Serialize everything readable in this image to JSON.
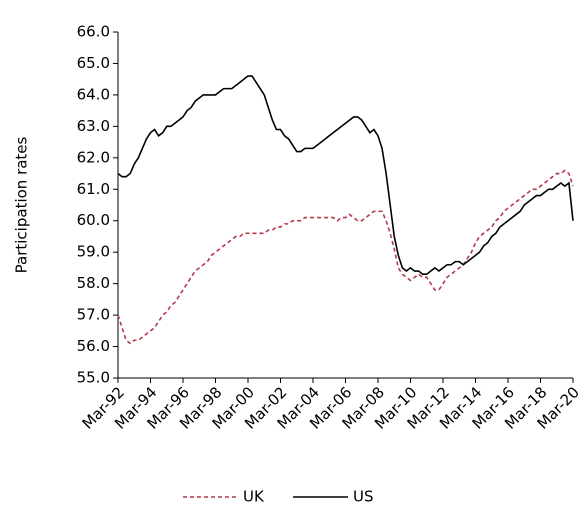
{
  "chart_data": {
    "type": "line",
    "y_label": "Participation rates",
    "categories": [
      "Mar-92",
      null,
      null,
      null,
      null,
      null,
      null,
      null,
      "Mar-94",
      null,
      null,
      null,
      null,
      null,
      null,
      null,
      "Mar-96",
      null,
      null,
      null,
      null,
      null,
      null,
      null,
      "Mar-98",
      null,
      null,
      null,
      null,
      null,
      null,
      null,
      "Mar-00",
      null,
      null,
      null,
      null,
      null,
      null,
      null,
      "Mar-02",
      null,
      null,
      null,
      null,
      null,
      null,
      null,
      "Mar-04",
      null,
      null,
      null,
      null,
      null,
      null,
      null,
      "Mar-06",
      null,
      null,
      null,
      null,
      null,
      null,
      null,
      "Mar-08",
      null,
      null,
      null,
      null,
      null,
      null,
      null,
      "Mar-10",
      null,
      null,
      null,
      null,
      null,
      null,
      null,
      "Mar-12",
      null,
      null,
      null,
      null,
      null,
      null,
      null,
      "Mar-14",
      null,
      null,
      null,
      null,
      null,
      null,
      null,
      "Mar-16",
      null,
      null,
      null,
      null,
      null,
      null,
      null,
      "Mar-18",
      null,
      null,
      null,
      null,
      null,
      null,
      null,
      "Mar-20"
    ],
    "series": [
      {
        "name": "UK",
        "color": "#b5394d",
        "dashed": true,
        "values": [
          57.0,
          56.6,
          56.2,
          56.1,
          56.2,
          56.2,
          56.3,
          56.4,
          56.5,
          56.6,
          56.8,
          57.0,
          57.1,
          57.3,
          57.4,
          57.6,
          57.8,
          58.0,
          58.2,
          58.4,
          58.5,
          58.6,
          58.7,
          58.9,
          59.0,
          59.1,
          59.2,
          59.3,
          59.4,
          59.5,
          59.5,
          59.6,
          59.6,
          59.6,
          59.6,
          59.6,
          59.6,
          59.7,
          59.7,
          59.8,
          59.8,
          59.9,
          59.9,
          60.0,
          60.0,
          60.0,
          60.1,
          60.1,
          60.1,
          60.1,
          60.1,
          60.1,
          60.1,
          60.1,
          60.0,
          60.1,
          60.1,
          60.2,
          60.1,
          60.0,
          60.0,
          60.1,
          60.2,
          60.3,
          60.3,
          60.3,
          60.0,
          59.6,
          59.1,
          58.5,
          58.3,
          58.2,
          58.1,
          58.2,
          58.3,
          58.2,
          58.2,
          58.0,
          57.8,
          57.8,
          58.0,
          58.2,
          58.3,
          58.4,
          58.5,
          58.6,
          58.8,
          59.0,
          59.3,
          59.5,
          59.6,
          59.7,
          59.8,
          60.0,
          60.1,
          60.3,
          60.4,
          60.5,
          60.6,
          60.7,
          60.8,
          60.9,
          61.0,
          61.0,
          61.1,
          61.2,
          61.3,
          61.4,
          61.5,
          61.5,
          61.6,
          61.5,
          61.1
        ]
      },
      {
        "name": "US",
        "color": "#000000",
        "dashed": false,
        "values": [
          61.5,
          61.4,
          61.4,
          61.5,
          61.8,
          62.0,
          62.3,
          62.6,
          62.8,
          62.9,
          62.7,
          62.8,
          63.0,
          63.0,
          63.1,
          63.2,
          63.3,
          63.5,
          63.6,
          63.8,
          63.9,
          64.0,
          64.0,
          64.0,
          64.0,
          64.1,
          64.2,
          64.2,
          64.2,
          64.3,
          64.4,
          64.5,
          64.6,
          64.6,
          64.4,
          64.2,
          64.0,
          63.6,
          63.2,
          62.9,
          62.9,
          62.7,
          62.6,
          62.4,
          62.2,
          62.2,
          62.3,
          62.3,
          62.3,
          62.4,
          62.5,
          62.6,
          62.7,
          62.8,
          62.9,
          63.0,
          63.1,
          63.2,
          63.3,
          63.3,
          63.2,
          63.0,
          62.8,
          62.9,
          62.7,
          62.3,
          61.5,
          60.5,
          59.5,
          58.9,
          58.5,
          58.4,
          58.5,
          58.4,
          58.4,
          58.3,
          58.3,
          58.4,
          58.5,
          58.4,
          58.5,
          58.6,
          58.6,
          58.7,
          58.7,
          58.6,
          58.7,
          58.8,
          58.9,
          59.0,
          59.2,
          59.3,
          59.5,
          59.6,
          59.8,
          59.9,
          60.0,
          60.1,
          60.2,
          60.3,
          60.5,
          60.6,
          60.7,
          60.8,
          60.8,
          60.9,
          61.0,
          61.0,
          61.1,
          61.2,
          61.1,
          61.2,
          60.0
        ]
      }
    ],
    "ylim": [
      55,
      66
    ],
    "yticks": [
      {
        "value": 55,
        "label": "55.0"
      },
      {
        "value": 56,
        "label": "56.0"
      },
      {
        "value": 57,
        "label": "57.0"
      },
      {
        "value": 58,
        "label": "58.0"
      },
      {
        "value": 59,
        "label": "59.0"
      },
      {
        "value": 60,
        "label": "60.0"
      },
      {
        "value": 61,
        "label": "61.0"
      },
      {
        "value": 62,
        "label": "62.0"
      },
      {
        "value": 63,
        "label": "63.0"
      },
      {
        "value": 64,
        "label": "64.0"
      },
      {
        "value": 65,
        "label": "65.0"
      },
      {
        "value": 66,
        "label": "66.0"
      }
    ],
    "grid": false,
    "legend": "bottom"
  }
}
